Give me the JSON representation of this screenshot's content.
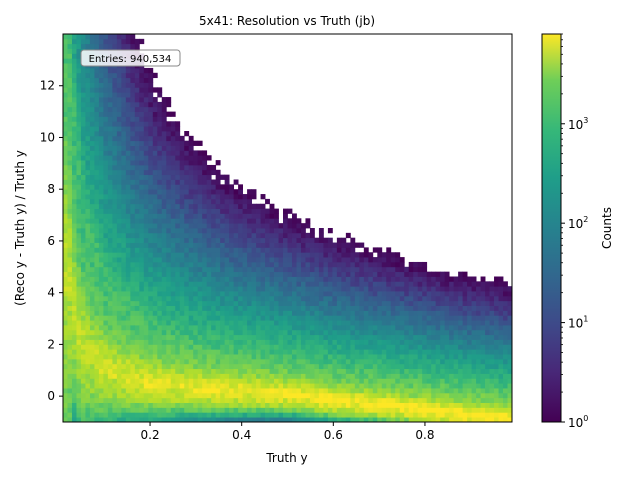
{
  "chart_data": {
    "type": "heatmap",
    "title": "5x41: Resolution vs Truth (jb)",
    "xlabel": "Truth y",
    "ylabel": "(Reco y - Truth y) / Truth y",
    "xlim": [
      0.01,
      0.99
    ],
    "ylim": [
      -1.0,
      14.0
    ],
    "x_ticks": [
      {
        "value": 0.2,
        "label": "0.2"
      },
      {
        "value": 0.4,
        "label": "0.4"
      },
      {
        "value": 0.6,
        "label": "0.6"
      },
      {
        "value": 0.8,
        "label": "0.8"
      }
    ],
    "y_ticks": [
      {
        "value": 0,
        "label": "0"
      },
      {
        "value": 2,
        "label": "2"
      },
      {
        "value": 4,
        "label": "4"
      },
      {
        "value": 6,
        "label": "6"
      },
      {
        "value": 8,
        "label": "8"
      },
      {
        "value": 10,
        "label": "10"
      },
      {
        "value": 12,
        "label": "12"
      }
    ],
    "colorbar": {
      "label": "Counts",
      "scale": "log",
      "range": [
        1,
        8000
      ],
      "colormap": "viridis",
      "ticks": [
        {
          "value": 1,
          "base": "10",
          "exp": "0"
        },
        {
          "value": 10,
          "base": "10",
          "exp": "1"
        },
        {
          "value": 100,
          "base": "10",
          "exp": "2"
        },
        {
          "value": 1000,
          "base": "10",
          "exp": "3"
        }
      ]
    },
    "annotation": "Entries: 940,534",
    "grid": false,
    "ridges": [
      {
        "description": "main band",
        "points": [
          [
            0.02,
            4.0
          ],
          [
            0.05,
            1.5
          ],
          [
            0.1,
            0.8
          ],
          [
            0.2,
            0.35
          ],
          [
            0.3,
            0.2
          ],
          [
            0.4,
            0.08
          ],
          [
            0.5,
            0.0
          ],
          [
            0.6,
            -0.25
          ],
          [
            0.7,
            -0.4
          ],
          [
            0.8,
            -0.6
          ],
          [
            0.9,
            -0.8
          ],
          [
            0.98,
            -0.92
          ]
        ]
      },
      {
        "description": "upper band",
        "points": [
          [
            0.02,
            14.0
          ],
          [
            0.04,
            9.5
          ],
          [
            0.06,
            7.0
          ],
          [
            0.1,
            4.6
          ],
          [
            0.15,
            3.5
          ],
          [
            0.2,
            2.5
          ],
          [
            0.25,
            2.0
          ],
          [
            0.3,
            1.6
          ],
          [
            0.4,
            1.0
          ],
          [
            0.5,
            0.6
          ],
          [
            0.6,
            0.2
          ],
          [
            0.7,
            -0.2
          ],
          [
            0.8,
            -0.5
          ],
          [
            0.9,
            -0.75
          ]
        ]
      }
    ]
  }
}
